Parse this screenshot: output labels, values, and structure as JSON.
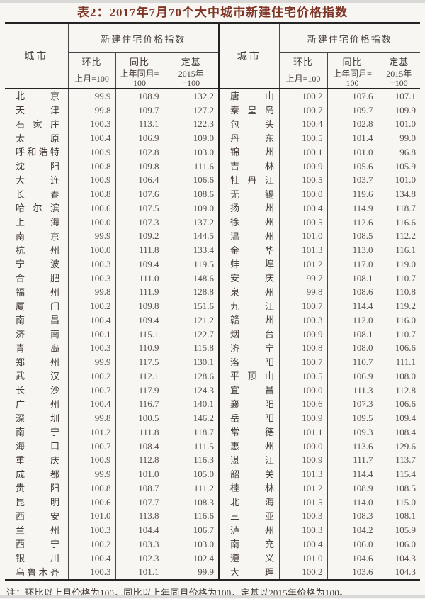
{
  "page": {
    "title": "表2：2017年7月70个大中城市新建住宅价格指数",
    "note": "注：环比以上月价格为100，同比以上年同月价格为100，定基以2015年价格为100。"
  },
  "header": {
    "city_label": "城市",
    "group_label": "新建住宅价格指数",
    "columns": [
      {
        "label": "环比",
        "basis_line1": "上月=100",
        "basis_line2": ""
      },
      {
        "label": "同比",
        "basis_line1": "上年同月=",
        "basis_line2": "100"
      },
      {
        "label": "定基",
        "basis_line1": "2015年",
        "basis_line2": "=100"
      }
    ]
  },
  "colors": {
    "title_text": "#7e3424",
    "body_text": "#4c423c",
    "rule_thin": "#474747",
    "rule_heavy": "#242424",
    "background": "#f7f6f3"
  },
  "table": {
    "rows_left": [
      [
        "北京",
        "99.9",
        "108.9",
        "132.2"
      ],
      [
        "天津",
        "99.8",
        "109.7",
        "127.2"
      ],
      [
        "石家庄",
        "100.3",
        "113.1",
        "122.3"
      ],
      [
        "太原",
        "100.4",
        "106.9",
        "109.0"
      ],
      [
        "呼和浩特",
        "100.9",
        "102.8",
        "103.0"
      ],
      [
        "沈阳",
        "100.8",
        "109.8",
        "111.6"
      ],
      [
        "大连",
        "100.9",
        "106.4",
        "106.6"
      ],
      [
        "长春",
        "100.8",
        "107.6",
        "108.6"
      ],
      [
        "哈尔滨",
        "100.6",
        "107.5",
        "109.0"
      ],
      [
        "上海",
        "100.0",
        "107.3",
        "137.2"
      ],
      [
        "南京",
        "99.9",
        "109.2",
        "144.5"
      ],
      [
        "杭州",
        "100.0",
        "111.8",
        "133.4"
      ],
      [
        "宁波",
        "100.3",
        "109.4",
        "119.5"
      ],
      [
        "合肥",
        "100.3",
        "111.0",
        "148.6"
      ],
      [
        "福州",
        "99.8",
        "111.9",
        "128.8"
      ],
      [
        "厦门",
        "100.2",
        "109.8",
        "151.6"
      ],
      [
        "南昌",
        "100.4",
        "109.4",
        "121.2"
      ],
      [
        "济南",
        "100.1",
        "115.1",
        "122.7"
      ],
      [
        "青岛",
        "100.3",
        "110.9",
        "115.8"
      ],
      [
        "郑州",
        "99.9",
        "117.5",
        "130.1"
      ],
      [
        "武汉",
        "100.2",
        "112.1",
        "128.6"
      ],
      [
        "长沙",
        "100.7",
        "117.9",
        "124.3"
      ],
      [
        "广州",
        "100.4",
        "116.7",
        "140.1"
      ],
      [
        "深圳",
        "99.8",
        "100.5",
        "146.2"
      ],
      [
        "南宁",
        "101.2",
        "111.8",
        "118.7"
      ],
      [
        "海口",
        "100.7",
        "108.4",
        "111.5"
      ],
      [
        "重庆",
        "100.9",
        "112.8",
        "116.3"
      ],
      [
        "成都",
        "99.9",
        "101.0",
        "105.0"
      ],
      [
        "贵阳",
        "100.8",
        "108.7",
        "111.2"
      ],
      [
        "昆明",
        "100.6",
        "107.7",
        "108.3"
      ],
      [
        "西安",
        "101.0",
        "113.8",
        "116.6"
      ],
      [
        "兰州",
        "100.3",
        "104.4",
        "106.7"
      ],
      [
        "西宁",
        "100.2",
        "103.3",
        "103.0"
      ],
      [
        "银川",
        "100.4",
        "102.3",
        "102.4"
      ],
      [
        "乌鲁木齐",
        "100.3",
        "101.1",
        "99.9"
      ]
    ],
    "rows_right": [
      [
        "唐山",
        "100.2",
        "107.6",
        "107.1"
      ],
      [
        "秦皇岛",
        "100.7",
        "109.7",
        "109.9"
      ],
      [
        "包头",
        "100.4",
        "102.8",
        "101.0"
      ],
      [
        "丹东",
        "100.5",
        "101.4",
        "99.0"
      ],
      [
        "锦州",
        "100.1",
        "101.0",
        "96.8"
      ],
      [
        "吉林",
        "100.9",
        "105.6",
        "105.9"
      ],
      [
        "牡丹江",
        "100.5",
        "103.7",
        "101.0"
      ],
      [
        "无锡",
        "100.0",
        "119.6",
        "134.8"
      ],
      [
        "扬州",
        "100.4",
        "114.9",
        "118.7"
      ],
      [
        "徐州",
        "100.5",
        "112.6",
        "116.6"
      ],
      [
        "温州",
        "101.0",
        "108.5",
        "112.2"
      ],
      [
        "金华",
        "101.3",
        "113.0",
        "116.1"
      ],
      [
        "蚌埠",
        "101.2",
        "117.0",
        "119.0"
      ],
      [
        "安庆",
        "99.7",
        "108.1",
        "110.7"
      ],
      [
        "泉州",
        "99.8",
        "108.6",
        "110.8"
      ],
      [
        "九江",
        "100.7",
        "114.4",
        "119.2"
      ],
      [
        "赣州",
        "100.3",
        "112.0",
        "116.0"
      ],
      [
        "烟台",
        "100.9",
        "108.1",
        "110.7"
      ],
      [
        "济宁",
        "100.8",
        "108.0",
        "106.6"
      ],
      [
        "洛阳",
        "100.7",
        "110.7",
        "111.1"
      ],
      [
        "平顶山",
        "100.5",
        "106.9",
        "108.0"
      ],
      [
        "宜昌",
        "100.0",
        "111.3",
        "112.8"
      ],
      [
        "襄阳",
        "100.6",
        "107.3",
        "106.6"
      ],
      [
        "岳阳",
        "100.9",
        "109.5",
        "109.4"
      ],
      [
        "常德",
        "101.1",
        "109.3",
        "108.4"
      ],
      [
        "惠州",
        "100.0",
        "113.6",
        "129.6"
      ],
      [
        "湛江",
        "100.9",
        "111.7",
        "113.7"
      ],
      [
        "韶关",
        "101.3",
        "114.4",
        "115.4"
      ],
      [
        "桂林",
        "101.2",
        "108.9",
        "108.5"
      ],
      [
        "北海",
        "101.5",
        "114.0",
        "115.0"
      ],
      [
        "三亚",
        "100.3",
        "108.3",
        "108.1"
      ],
      [
        "泸州",
        "100.3",
        "104.2",
        "105.9"
      ],
      [
        "南充",
        "100.4",
        "106.0",
        "106.0"
      ],
      [
        "遵义",
        "101.0",
        "104.6",
        "104.3"
      ],
      [
        "大理",
        "100.2",
        "103.6",
        "104.3"
      ]
    ]
  }
}
